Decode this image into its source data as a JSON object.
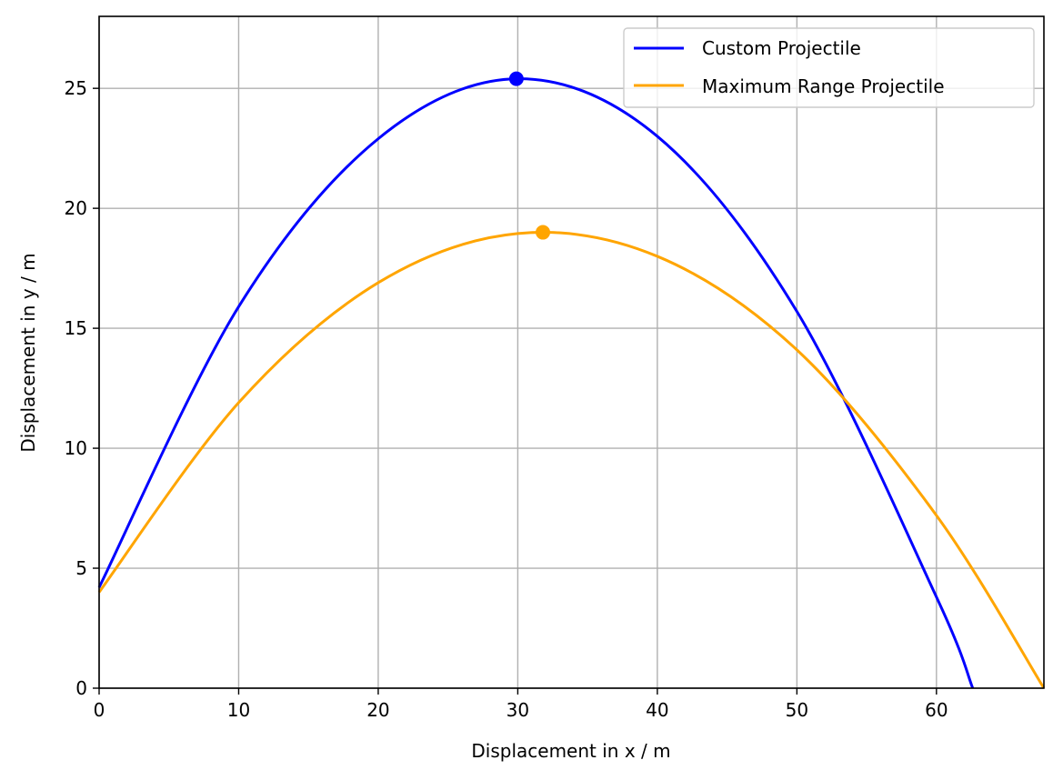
{
  "chart_data": {
    "type": "line",
    "title": "",
    "xlabel": "Displacement in x / m",
    "ylabel": "Displacement in y / m",
    "xlim": [
      0,
      67.7
    ],
    "ylim": [
      0,
      28
    ],
    "xticks": [
      0,
      10,
      20,
      30,
      40,
      50,
      60
    ],
    "yticks": [
      0,
      5,
      10,
      15,
      20,
      25
    ],
    "grid": true,
    "legend_position": "top-right",
    "series": [
      {
        "name": "Custom Projectile",
        "color": "#0000ff",
        "points": [
          [
            0,
            4.2
          ],
          [
            10,
            15.9
          ],
          [
            20,
            22.9
          ],
          [
            30,
            25.4
          ],
          [
            40,
            23.0
          ],
          [
            50,
            15.7
          ],
          [
            60,
            3.8
          ],
          [
            62.6,
            0
          ]
        ],
        "apex": [
          29.9,
          25.4
        ]
      },
      {
        "name": "Maximum Range Projectile",
        "color": "#ffa500",
        "points": [
          [
            0,
            4.0
          ],
          [
            10,
            11.9
          ],
          [
            20,
            16.9
          ],
          [
            30,
            18.95
          ],
          [
            40,
            18.0
          ],
          [
            50,
            14.1
          ],
          [
            60,
            7.2
          ],
          [
            67.7,
            0
          ]
        ],
        "apex": [
          31.8,
          19.0
        ]
      }
    ]
  }
}
